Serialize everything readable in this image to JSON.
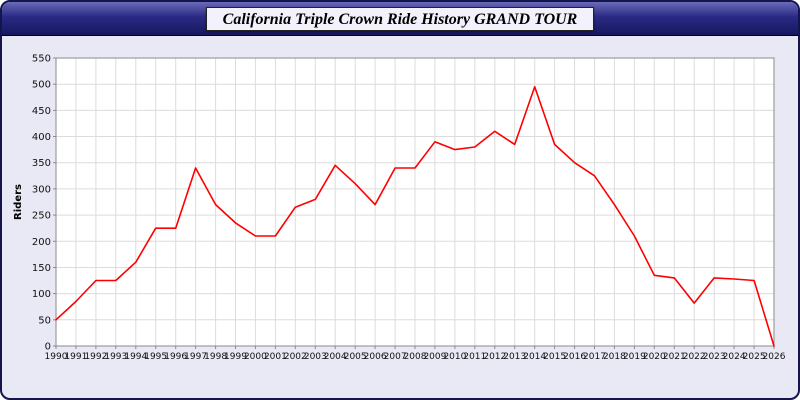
{
  "header": {
    "title": "California Triple Crown Ride History GRAND TOUR"
  },
  "chart_data": {
    "type": "line",
    "title": "California Triple Crown Ride History GRAND TOUR",
    "x": [
      1990,
      1991,
      1992,
      1993,
      1994,
      1995,
      1996,
      1997,
      1998,
      1999,
      2000,
      2001,
      2002,
      2003,
      2004,
      2005,
      2006,
      2007,
      2008,
      2009,
      2010,
      2011,
      2012,
      2013,
      2014,
      2015,
      2016,
      2017,
      2018,
      2019,
      2020,
      2021,
      2022,
      2023,
      2024,
      2025,
      2026
    ],
    "series": [
      {
        "name": "Riders",
        "values": [
          50,
          85,
          125,
          125,
          160,
          225,
          225,
          340,
          270,
          235,
          210,
          210,
          265,
          280,
          345,
          310,
          270,
          340,
          340,
          390,
          375,
          380,
          410,
          385,
          495,
          385,
          350,
          325,
          270,
          210,
          135,
          130,
          82,
          130,
          128,
          125,
          0
        ]
      }
    ],
    "xlabel": "",
    "ylabel": "Riders",
    "ylim": [
      0,
      550
    ],
    "ytick_step": 50,
    "grid": true,
    "legend": "none",
    "line_color": "#ff0000",
    "plot_bg": "#ffffff",
    "grid_color": "#dcdcdc",
    "axis_border_color": "#8a8a8a",
    "tick_label_color": "#111111"
  }
}
